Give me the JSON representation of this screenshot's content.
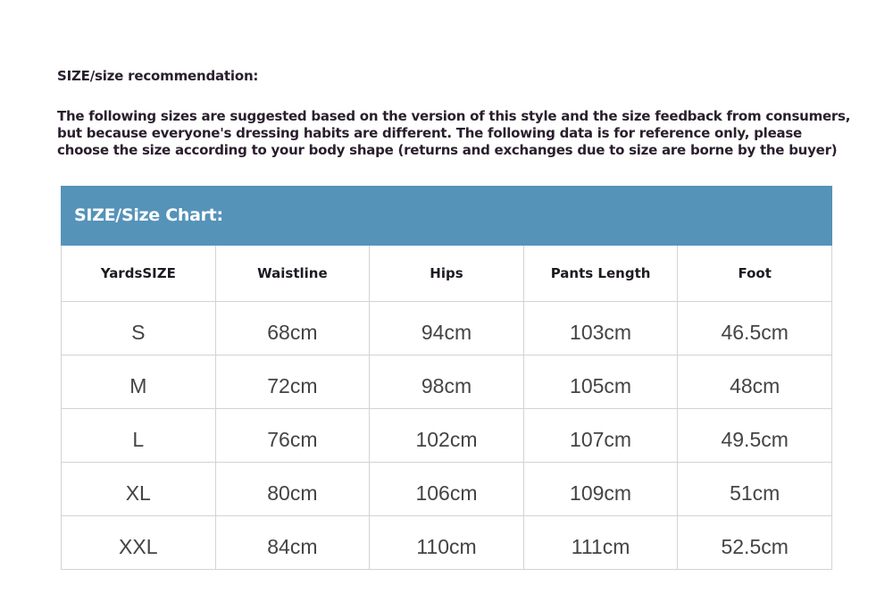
{
  "heading": "SIZE/size recommendation:",
  "intro_lines": [
    "The following sizes are suggested based on the version of this style and the size feedback from consumers,",
    "but because everyone's dressing habits are different. The following data is for reference only, please",
    "choose the size according to your body shape (returns and exchanges due to size are borne by the buyer)"
  ],
  "chart": {
    "title": "SIZE/Size Chart:",
    "header_color": "#5593b9",
    "columns": [
      "YardsSIZE",
      "Waistline",
      "Hips",
      "Pants Length",
      "Foot"
    ],
    "rows": [
      [
        "S",
        "68cm",
        "94cm",
        "103cm",
        "46.5cm"
      ],
      [
        "M",
        "72cm",
        "98cm",
        "105cm",
        "48cm"
      ],
      [
        "L",
        "76cm",
        "102cm",
        "107cm",
        "49.5cm"
      ],
      [
        "XL",
        "80cm",
        "106cm",
        "109cm",
        "51cm"
      ],
      [
        "XXL",
        "84cm",
        "110cm",
        "111cm",
        "52.5cm"
      ]
    ]
  }
}
